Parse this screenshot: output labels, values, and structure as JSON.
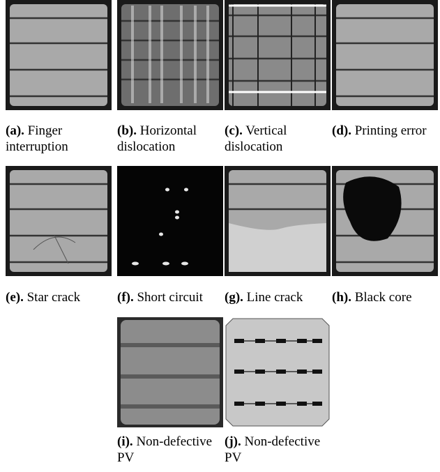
{
  "panels": [
    {
      "label": "(a).",
      "text": "Finger interruption"
    },
    {
      "label": "(b).",
      "text": "Horizontal dislocation"
    },
    {
      "label": "(c).",
      "text": "Vertical dislocation"
    },
    {
      "label": "(d).",
      "text": "Printing error"
    },
    {
      "label": "(e).",
      "text": "Star crack"
    },
    {
      "label": "(f).",
      "text": "Short circuit"
    },
    {
      "label": "(g).",
      "text": "Line crack"
    },
    {
      "label": "(h).",
      "text": "Black core"
    },
    {
      "label": "(i).",
      "text": "Non-defective PV"
    },
    {
      "label": "(j).",
      "text": "Non-defective PV"
    }
  ]
}
